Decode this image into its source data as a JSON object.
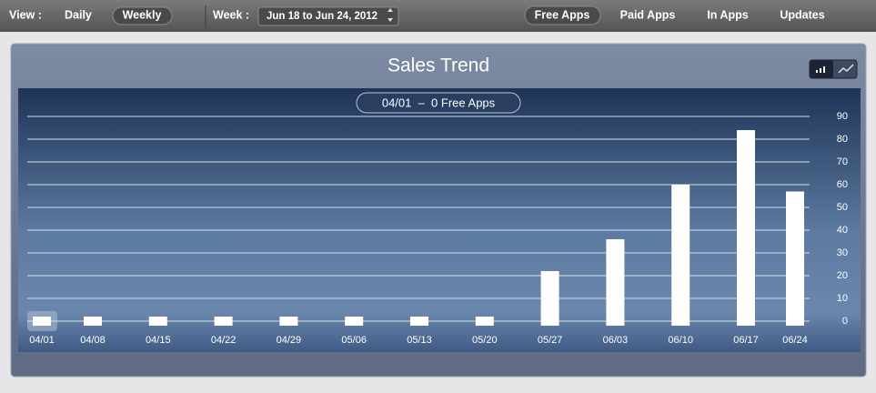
{
  "toolbar": {
    "view_label": "View :",
    "view_options": [
      "Daily",
      "Weekly"
    ],
    "week_label": "Week :",
    "week_value": "Jun 18 to Jun 24, 2012",
    "tabs": [
      "Free Apps",
      "Paid Apps",
      "In Apps",
      "Updates"
    ]
  },
  "chart_data": {
    "type": "bar",
    "title": "Sales Trend",
    "annotation": "04/01  –  0 Free Apps",
    "categories": [
      "04/01",
      "04/08",
      "04/15",
      "04/22",
      "04/29",
      "05/06",
      "05/13",
      "05/20",
      "05/27",
      "06/03",
      "06/10",
      "06/17",
      "06/24"
    ],
    "values": [
      0,
      0,
      0,
      0,
      0,
      0,
      0,
      0,
      22,
      36,
      60,
      84,
      57
    ],
    "color": "#ffffff",
    "ylim": [
      0,
      90
    ],
    "yticks": [
      0,
      10,
      20,
      30,
      40,
      50,
      60,
      70,
      80,
      90
    ],
    "grid": true
  }
}
